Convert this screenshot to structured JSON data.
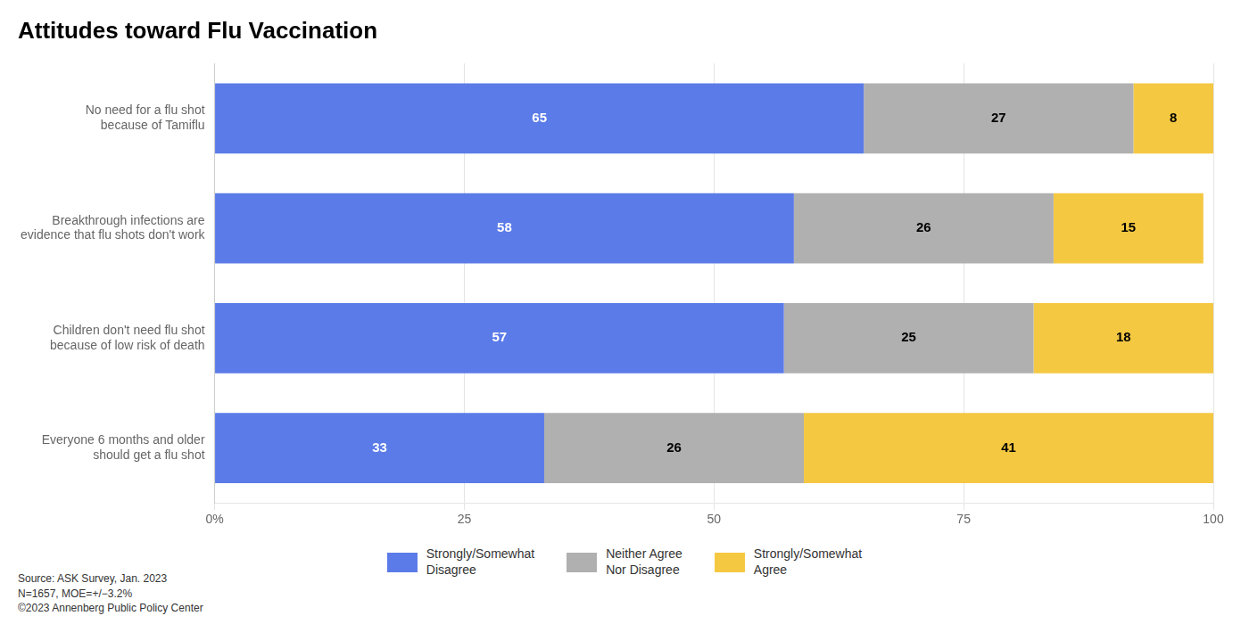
{
  "chart_data": {
    "type": "bar",
    "orientation": "horizontal",
    "stacked": true,
    "title": "Attitudes toward Flu Vaccination",
    "categories": [
      "No need for a flu shot\nbecause of Tamiflu",
      "Breakthrough infections are\nevidence that flu shots don't work",
      "Children don't need flu shot\nbecause of low risk of death",
      "Everyone 6 months and older\nshould get a flu shot"
    ],
    "series": [
      {
        "name": "Strongly/Somewhat\nDisagree",
        "color": "#5b7be8",
        "values": [
          65,
          58,
          57,
          33
        ]
      },
      {
        "name": "Neither Agree\nNor Disagree",
        "color": "#b0b0b0",
        "values": [
          27,
          26,
          25,
          26
        ]
      },
      {
        "name": "Strongly/Somewhat\nAgree",
        "color": "#f5c842",
        "values": [
          8,
          15,
          18,
          41
        ]
      }
    ],
    "xlim": [
      0,
      100
    ],
    "xticks": [
      {
        "value": 0,
        "label": "0%"
      },
      25,
      50,
      75,
      100
    ],
    "grid": "x",
    "data_labels": true,
    "legend": "bottom",
    "annotations": [
      "Source: ASK Survey, Jan. 2023\nN=1657, MOE=+/−3.2%\n©2023 Annenberg Public Policy Center"
    ]
  }
}
